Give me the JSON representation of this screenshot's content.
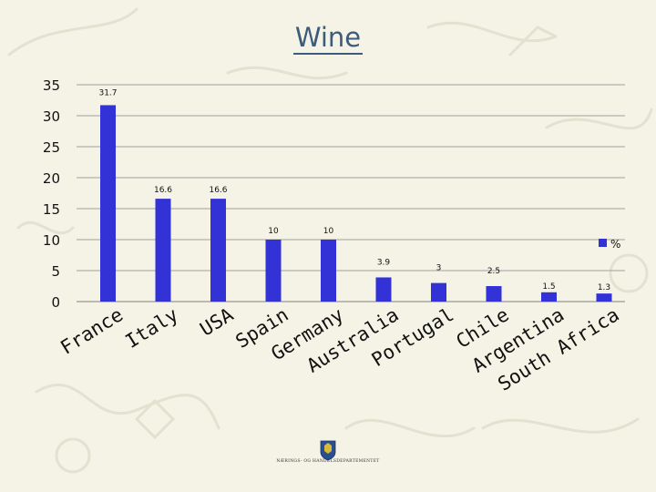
{
  "title": "Wine",
  "footer": {
    "ministry": "NÆRINGS- OG HANDELSDEPARTEMENTET"
  },
  "colors": {
    "background": "#f4f3e6",
    "bar": "#3232d6",
    "title": "#3d5b7a",
    "grid": "#a0a0a0"
  },
  "chart_data": {
    "type": "bar",
    "title": "Wine",
    "categories": [
      "France",
      "Italy",
      "USA",
      "Spain",
      "Germany",
      "Australia",
      "Portugal",
      "Chile",
      "Argentina",
      "South Africa"
    ],
    "series": [
      {
        "name": "%",
        "values": [
          31.7,
          16.6,
          16.6,
          10,
          10,
          3.9,
          3,
          2.5,
          1.5,
          1.3
        ]
      }
    ],
    "data_labels": [
      "31.7",
      "16.6",
      "16.6",
      "10",
      "10",
      "3.9",
      "3",
      "2.5",
      "1.5",
      "1.3"
    ],
    "yticks": [
      0,
      5,
      10,
      15,
      20,
      25,
      30,
      35
    ],
    "ylim": [
      0,
      35
    ],
    "grid": true,
    "legend": "right",
    "xlabel": "",
    "ylabel": ""
  }
}
